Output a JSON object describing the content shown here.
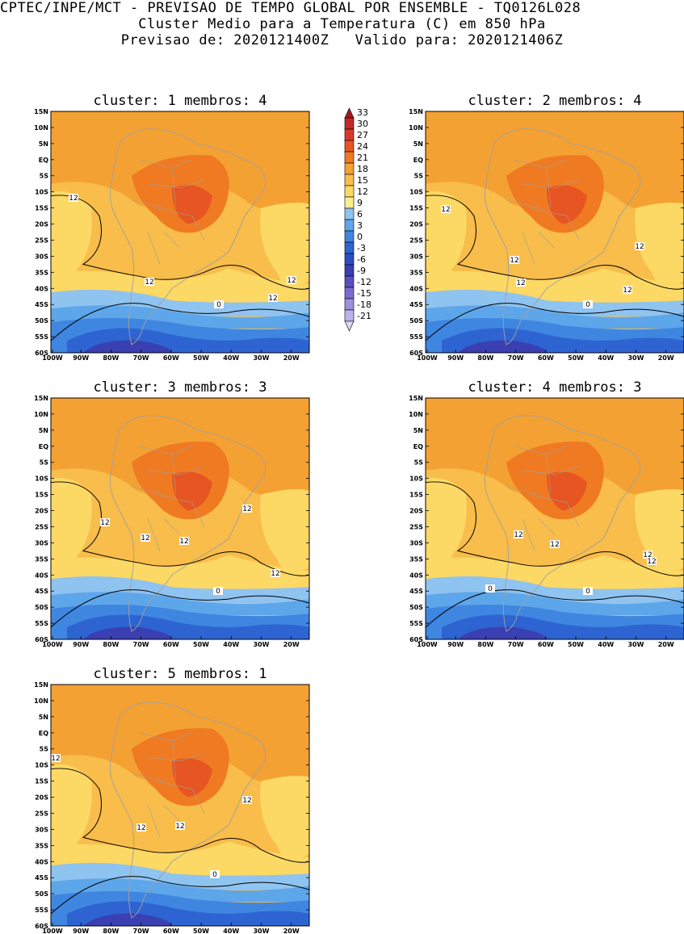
{
  "header": {
    "line1": "CPTEC/INPE/MCT - PREVISAO DE TEMPO GLOBAL POR ENSEMBLE - TQ0126L028",
    "line2": "Cluster Medio para a Temperatura (C) em 850 hPa",
    "line3": "Previsao de: 2020121400Z   Valido para: 2020121406Z"
  },
  "panels": [
    {
      "title": "cluster: 1  membros: 4"
    },
    {
      "title": "cluster: 2  membros: 4"
    },
    {
      "title": "cluster: 3  membros: 3"
    },
    {
      "title": "cluster: 4  membros: 3"
    },
    {
      "title": "cluster: 5  membros: 1"
    }
  ],
  "axes": {
    "lat_labels": [
      "15N",
      "10N",
      "5N",
      "EQ",
      "5S",
      "10S",
      "15S",
      "20S",
      "25S",
      "30S",
      "35S",
      "40S",
      "45S",
      "50S",
      "55S",
      "60S"
    ],
    "lon_labels": [
      "100W",
      "90W",
      "80W",
      "70W",
      "60W",
      "50W",
      "40W",
      "30W",
      "20W"
    ]
  },
  "colorbar": {
    "levels": [
      "33",
      "30",
      "27",
      "24",
      "21",
      "18",
      "15",
      "12",
      "9",
      "6",
      "3",
      "0",
      "-3",
      "-6",
      "-9",
      "-12",
      "-15",
      "-18",
      "-21"
    ],
    "colors": [
      "#a11b1b",
      "#c0282a",
      "#d83a2a",
      "#e65522",
      "#ef7a22",
      "#f4a133",
      "#f8bd4a",
      "#fcd865",
      "#fcec8e",
      "#8fc3f0",
      "#5ea6ea",
      "#3f86e0",
      "#2e64d2",
      "#2a4ec2",
      "#3a3fb2",
      "#5a4ec0",
      "#7c6bd0",
      "#9d90de",
      "#bcb3ea",
      "#dcd7f4"
    ]
  },
  "contour_labels": {
    "p1": [
      "12",
      "12",
      "12",
      "12",
      "0"
    ],
    "p2": [
      "12",
      "12",
      "12",
      "12",
      "12",
      "0"
    ],
    "p3": [
      "12",
      "12",
      "12",
      "12",
      "12",
      "0"
    ],
    "p4": [
      "12",
      "12",
      "12",
      "12",
      "0",
      "0"
    ],
    "p5": [
      "12",
      "12",
      "12",
      "12",
      "0"
    ]
  }
}
